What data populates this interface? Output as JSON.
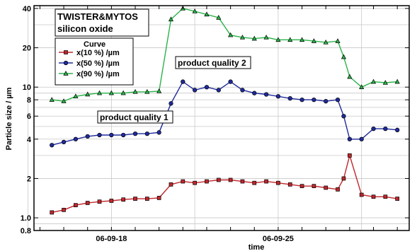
{
  "chart_data": {
    "type": "line",
    "title": [
      "TWISTER&MYTOS",
      "silicon oxide"
    ],
    "xlabel": "time",
    "ylabel": "Particle size / µm",
    "y_scale": "log",
    "ylim": [
      0.8,
      42
    ],
    "yticks": [
      "0.8",
      "1.0",
      "2",
      "4",
      "6",
      "8",
      "10",
      "20",
      "40"
    ],
    "xticks": [
      "06-09-18",
      "06-09-25"
    ],
    "xlim": [
      "06-09-14 18:00",
      "06-09-30 12:00"
    ],
    "grid": true,
    "legend": {
      "title": "Curve",
      "position": "top-left"
    },
    "annotations": [
      "product quality 1",
      "product quality 2"
    ],
    "colors": {
      "x10": "#c0272d",
      "x50": "#1f2a9c",
      "x90": "#2bb34a"
    },
    "series": [
      {
        "name": "x(10 %) /µm",
        "marker": "square",
        "x": [
          "06-09-15 12:00",
          "06-09-16 00:00",
          "06-09-16 12:00",
          "06-09-17 00:00",
          "06-09-17 12:00",
          "06-09-18 00:00",
          "06-09-18 12:00",
          "06-09-19 00:00",
          "06-09-19 12:00",
          "06-09-20 00:00",
          "06-09-20 12:00",
          "06-09-21 00:00",
          "06-09-21 12:00",
          "06-09-22 00:00",
          "06-09-22 12:00",
          "06-09-23 00:00",
          "06-09-23 12:00",
          "06-09-24 00:00",
          "06-09-24 12:00",
          "06-09-25 00:00",
          "06-09-25 12:00",
          "06-09-26 00:00",
          "06-09-26 12:00",
          "06-09-27 00:00",
          "06-09-27 12:00",
          "06-09-27 18:00",
          "06-09-28 00:00",
          "06-09-28 12:00",
          "06-09-29 00:00",
          "06-09-29 12:00",
          "06-09-30 00:00"
        ],
        "values": [
          1.1,
          1.15,
          1.25,
          1.3,
          1.33,
          1.35,
          1.38,
          1.4,
          1.4,
          1.42,
          1.8,
          1.9,
          1.85,
          1.9,
          1.95,
          1.95,
          1.9,
          1.85,
          1.9,
          1.85,
          1.8,
          1.75,
          1.75,
          1.7,
          1.65,
          2.0,
          3.0,
          1.5,
          1.45,
          1.45,
          1.4
        ]
      },
      {
        "name": "x(50 %) /µm",
        "marker": "circle",
        "x": [
          "06-09-15 12:00",
          "06-09-16 00:00",
          "06-09-16 12:00",
          "06-09-17 00:00",
          "06-09-17 12:00",
          "06-09-18 00:00",
          "06-09-18 12:00",
          "06-09-19 00:00",
          "06-09-19 12:00",
          "06-09-20 00:00",
          "06-09-20 12:00",
          "06-09-21 00:00",
          "06-09-21 12:00",
          "06-09-22 00:00",
          "06-09-22 12:00",
          "06-09-23 00:00",
          "06-09-23 12:00",
          "06-09-24 00:00",
          "06-09-24 12:00",
          "06-09-25 00:00",
          "06-09-25 12:00",
          "06-09-26 00:00",
          "06-09-26 12:00",
          "06-09-27 00:00",
          "06-09-27 12:00",
          "06-09-27 18:00",
          "06-09-28 00:00",
          "06-09-28 12:00",
          "06-09-29 00:00",
          "06-09-29 12:00",
          "06-09-30 00:00"
        ],
        "values": [
          3.6,
          3.8,
          4.0,
          4.2,
          4.3,
          4.3,
          4.3,
          4.4,
          4.4,
          4.5,
          7.5,
          11.0,
          9.5,
          10.0,
          9.5,
          11.0,
          9.5,
          9.0,
          8.8,
          8.5,
          8.2,
          8.0,
          8.0,
          7.8,
          8.0,
          6.0,
          4.0,
          4.0,
          4.8,
          4.8,
          4.7
        ]
      },
      {
        "name": "x(90 %) /µm",
        "marker": "triangle",
        "x": [
          "06-09-15 12:00",
          "06-09-16 00:00",
          "06-09-16 12:00",
          "06-09-17 00:00",
          "06-09-17 12:00",
          "06-09-18 00:00",
          "06-09-18 12:00",
          "06-09-19 00:00",
          "06-09-19 12:00",
          "06-09-20 00:00",
          "06-09-20 12:00",
          "06-09-21 00:00",
          "06-09-21 12:00",
          "06-09-22 00:00",
          "06-09-22 12:00",
          "06-09-23 00:00",
          "06-09-23 12:00",
          "06-09-24 00:00",
          "06-09-24 12:00",
          "06-09-25 00:00",
          "06-09-25 12:00",
          "06-09-26 00:00",
          "06-09-26 12:00",
          "06-09-27 00:00",
          "06-09-27 12:00",
          "06-09-27 18:00",
          "06-09-28 00:00",
          "06-09-28 12:00",
          "06-09-29 00:00",
          "06-09-29 12:00",
          "06-09-30 00:00"
        ],
        "values": [
          8.0,
          7.8,
          8.5,
          8.8,
          9.0,
          9.0,
          9.0,
          9.2,
          9.2,
          9.3,
          33.0,
          40.0,
          38.0,
          36.0,
          34.0,
          25.0,
          24.0,
          23.5,
          24.0,
          23.0,
          23.0,
          23.0,
          22.5,
          22.0,
          22.5,
          17.0,
          12.0,
          10.0,
          11.0,
          10.8,
          11.0
        ]
      }
    ]
  }
}
